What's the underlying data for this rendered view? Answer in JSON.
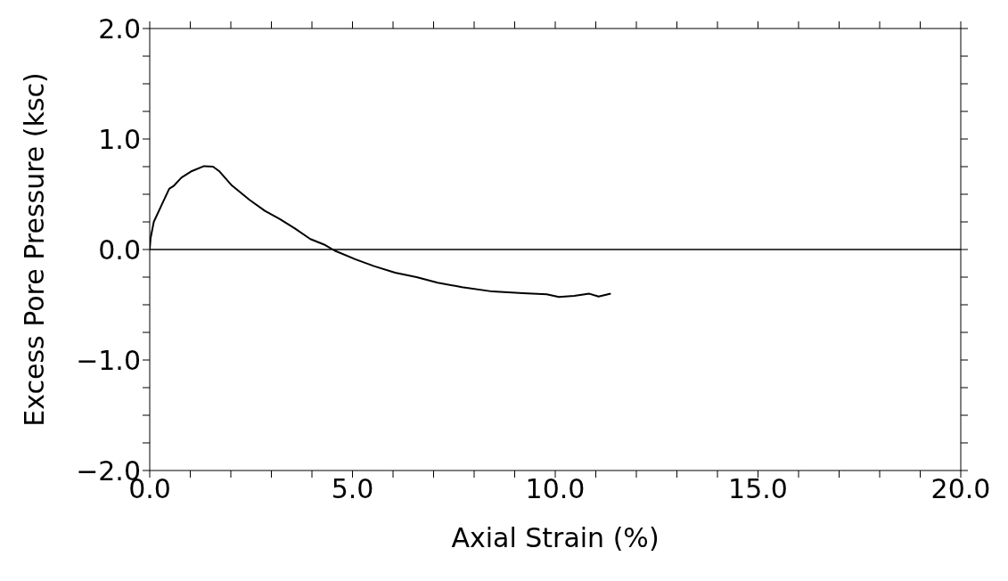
{
  "chart_data": {
    "type": "line",
    "xlabel": "Axial Strain (%)",
    "ylabel": "Excess Pore Pressure (ksc)",
    "xlim": [
      0,
      20
    ],
    "ylim": [
      -2,
      2
    ],
    "xticks": [
      {
        "value": 0,
        "label": "0.0"
      },
      {
        "value": 1,
        "label": null
      },
      {
        "value": 2,
        "label": null
      },
      {
        "value": 3,
        "label": null
      },
      {
        "value": 4,
        "label": null
      },
      {
        "value": 5,
        "label": "5.0"
      },
      {
        "value": 6,
        "label": null
      },
      {
        "value": 7,
        "label": null
      },
      {
        "value": 8,
        "label": null
      },
      {
        "value": 9,
        "label": null
      },
      {
        "value": 10,
        "label": "10.0"
      },
      {
        "value": 11,
        "label": null
      },
      {
        "value": 12,
        "label": null
      },
      {
        "value": 13,
        "label": null
      },
      {
        "value": 14,
        "label": null
      },
      {
        "value": 15,
        "label": "15.0"
      },
      {
        "value": 16,
        "label": null
      },
      {
        "value": 17,
        "label": null
      },
      {
        "value": 18,
        "label": null
      },
      {
        "value": 19,
        "label": null
      },
      {
        "value": 20,
        "label": "20.0"
      }
    ],
    "yticks": [
      {
        "value": -2,
        "label": "−2.0"
      },
      {
        "value": -1.75,
        "label": null
      },
      {
        "value": -1.5,
        "label": null
      },
      {
        "value": -1.25,
        "label": null
      },
      {
        "value": -1,
        "label": "−1.0"
      },
      {
        "value": -0.75,
        "label": null
      },
      {
        "value": -0.5,
        "label": null
      },
      {
        "value": -0.25,
        "label": null
      },
      {
        "value": 0,
        "label": "0.0"
      },
      {
        "value": 0.25,
        "label": null
      },
      {
        "value": 0.5,
        "label": null
      },
      {
        "value": 0.75,
        "label": null
      },
      {
        "value": 1,
        "label": "1.0"
      },
      {
        "value": 1.25,
        "label": null
      },
      {
        "value": 1.5,
        "label": null
      },
      {
        "value": 1.75,
        "label": null
      },
      {
        "value": 2,
        "label": "2.0"
      }
    ],
    "grid": false,
    "legend": false,
    "marker": "none",
    "line_style": "solid",
    "ref_lines": [
      {
        "axis": "y",
        "value": 0,
        "color": "#000000"
      }
    ],
    "series": [
      {
        "color": "#000000",
        "x": [
          0,
          0.02,
          0.1,
          0.29,
          0.48,
          0.59,
          0.78,
          1.04,
          1.34,
          1.56,
          1.71,
          2.01,
          2.46,
          2.84,
          3.21,
          3.58,
          3.96,
          4.33,
          4.56,
          5.08,
          5.53,
          6.05,
          6.58,
          7.1,
          7.7,
          8.45,
          9.2,
          9.79,
          10.09,
          10.47,
          10.84,
          11.07,
          11.37
        ],
        "values": [
          0,
          0.1,
          0.25,
          0.4,
          0.55,
          0.575,
          0.65,
          0.71,
          0.755,
          0.75,
          0.71,
          0.585,
          0.45,
          0.35,
          0.275,
          0.19,
          0.095,
          0.04,
          -0.01,
          -0.09,
          -0.15,
          -0.21,
          -0.25,
          -0.3,
          -0.34,
          -0.38,
          -0.395,
          -0.405,
          -0.43,
          -0.42,
          -0.4,
          -0.425,
          -0.4
        ]
      }
    ]
  }
}
